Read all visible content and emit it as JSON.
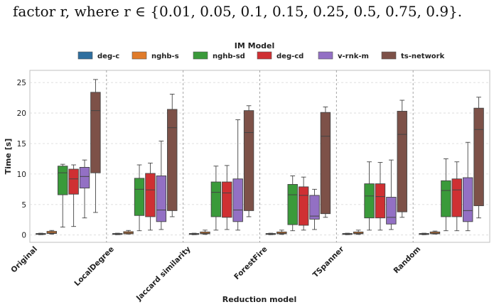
{
  "caption": "factor r, where r ∈ {0.01, 0.05, 0.1, 0.15, 0.25, 0.5, 0.75, 0.9}.",
  "chart_data": {
    "type": "box",
    "legend": {
      "title": "IM Model",
      "placement": "top",
      "entries": [
        "deg-c",
        "nghb-s",
        "nghb-sd",
        "deg-cd",
        "v-rnk-m",
        "ts-network"
      ]
    },
    "colors": {
      "deg-c": "#2f6f9f",
      "nghb-s": "#e07b2a",
      "nghb-sd": "#3a9a3a",
      "deg-cd": "#cf3033",
      "v-rnk-m": "#9370c4",
      "ts-network": "#7d5148"
    },
    "xlabel": "Reduction model",
    "ylabel": "Time [s]",
    "ylim": [
      -1.2,
      27
    ],
    "yticks": [
      0,
      5,
      10,
      15,
      20,
      25
    ],
    "grid": true,
    "categories": [
      "Original",
      "LocalDegree",
      "Jaccard similarity",
      "ForestFire",
      "TSpanner",
      "Random"
    ],
    "series": [
      {
        "name": "deg-c",
        "boxes": [
          {
            "min": 0.05,
            "q1": 0.1,
            "median": 0.15,
            "q3": 0.25,
            "max": 0.3
          },
          {
            "min": 0.05,
            "q1": 0.1,
            "median": 0.15,
            "q3": 0.25,
            "max": 0.3
          },
          {
            "min": 0.05,
            "q1": 0.1,
            "median": 0.15,
            "q3": 0.25,
            "max": 0.3
          },
          {
            "min": 0.05,
            "q1": 0.1,
            "median": 0.15,
            "q3": 0.25,
            "max": 0.3
          },
          {
            "min": 0.05,
            "q1": 0.1,
            "median": 0.15,
            "q3": 0.25,
            "max": 0.3
          },
          {
            "min": 0.05,
            "q1": 0.1,
            "median": 0.15,
            "q3": 0.25,
            "max": 0.3
          }
        ]
      },
      {
        "name": "nghb-s",
        "boxes": [
          {
            "min": 0.15,
            "q1": 0.25,
            "median": 0.35,
            "q3": 0.6,
            "max": 0.75
          },
          {
            "min": 0.15,
            "q1": 0.2,
            "median": 0.35,
            "q3": 0.55,
            "max": 0.75
          },
          {
            "min": 0.1,
            "q1": 0.2,
            "median": 0.3,
            "q3": 0.5,
            "max": 0.8
          },
          {
            "min": 0.1,
            "q1": 0.2,
            "median": 0.3,
            "q3": 0.5,
            "max": 0.8
          },
          {
            "min": 0.1,
            "q1": 0.2,
            "median": 0.3,
            "q3": 0.5,
            "max": 0.8
          },
          {
            "min": 0.15,
            "q1": 0.2,
            "median": 0.3,
            "q3": 0.5,
            "max": 0.65
          }
        ]
      },
      {
        "name": "nghb-sd",
        "boxes": [
          {
            "min": 1.3,
            "q1": 6.6,
            "median": 10.2,
            "q3": 11.3,
            "max": 11.6
          },
          {
            "min": 0.7,
            "q1": 3.2,
            "median": 7.5,
            "q3": 9.3,
            "max": 11.5
          },
          {
            "min": 0.8,
            "q1": 3.0,
            "median": 7.0,
            "q3": 8.7,
            "max": 11.3
          },
          {
            "min": 0.7,
            "q1": 1.7,
            "median": 6.6,
            "q3": 8.3,
            "max": 9.7
          },
          {
            "min": 0.8,
            "q1": 2.8,
            "median": 6.4,
            "q3": 8.4,
            "max": 12.0
          },
          {
            "min": 0.7,
            "q1": 3.0,
            "median": 7.3,
            "q3": 8.9,
            "max": 12.5
          }
        ]
      },
      {
        "name": "deg-cd",
        "boxes": [
          {
            "min": 1.4,
            "q1": 6.7,
            "median": 9.2,
            "q3": 10.8,
            "max": 11.5
          },
          {
            "min": 0.8,
            "q1": 3.0,
            "median": 7.4,
            "q3": 10.1,
            "max": 11.8
          },
          {
            "min": 0.9,
            "q1": 2.9,
            "median": 6.9,
            "q3": 8.7,
            "max": 11.4
          },
          {
            "min": 0.8,
            "q1": 1.6,
            "median": 6.5,
            "q3": 7.9,
            "max": 9.5
          },
          {
            "min": 0.8,
            "q1": 2.8,
            "median": 6.3,
            "q3": 8.4,
            "max": 11.9
          },
          {
            "min": 0.7,
            "q1": 3.0,
            "median": 7.4,
            "q3": 9.2,
            "max": 12.0
          }
        ]
      },
      {
        "name": "v-rnk-m",
        "boxes": [
          {
            "min": 2.8,
            "q1": 7.7,
            "median": 9.6,
            "q3": 11.1,
            "max": 12.3
          },
          {
            "min": 0.9,
            "q1": 2.2,
            "median": 4.1,
            "q3": 9.7,
            "max": 15.4
          },
          {
            "min": 0.8,
            "q1": 2.2,
            "median": 4.1,
            "q3": 9.2,
            "max": 18.9
          },
          {
            "min": 0.9,
            "q1": 2.6,
            "median": 3.1,
            "q3": 6.5,
            "max": 7.5
          },
          {
            "min": 0.9,
            "q1": 1.8,
            "median": 2.9,
            "q3": 6.2,
            "max": 12.3
          },
          {
            "min": 0.7,
            "q1": 2.2,
            "median": 4.0,
            "q3": 9.4,
            "max": 15.2
          }
        ]
      },
      {
        "name": "ts-network",
        "boxes": [
          {
            "min": 3.7,
            "q1": 10.2,
            "median": 20.4,
            "q3": 23.4,
            "max": 25.5
          },
          {
            "min": 3.0,
            "q1": 4.0,
            "median": 17.6,
            "q3": 20.6,
            "max": 23.1
          },
          {
            "min": 3.0,
            "q1": 4.0,
            "median": 16.8,
            "q3": 20.4,
            "max": 21.2
          },
          {
            "min": 2.9,
            "q1": 3.5,
            "median": 16.2,
            "q3": 20.1,
            "max": 21.0
          },
          {
            "min": 2.9,
            "q1": 3.8,
            "median": 16.5,
            "q3": 20.3,
            "max": 22.1
          },
          {
            "min": 2.8,
            "q1": 4.8,
            "median": 17.3,
            "q3": 20.8,
            "max": 22.6
          }
        ]
      }
    ]
  }
}
